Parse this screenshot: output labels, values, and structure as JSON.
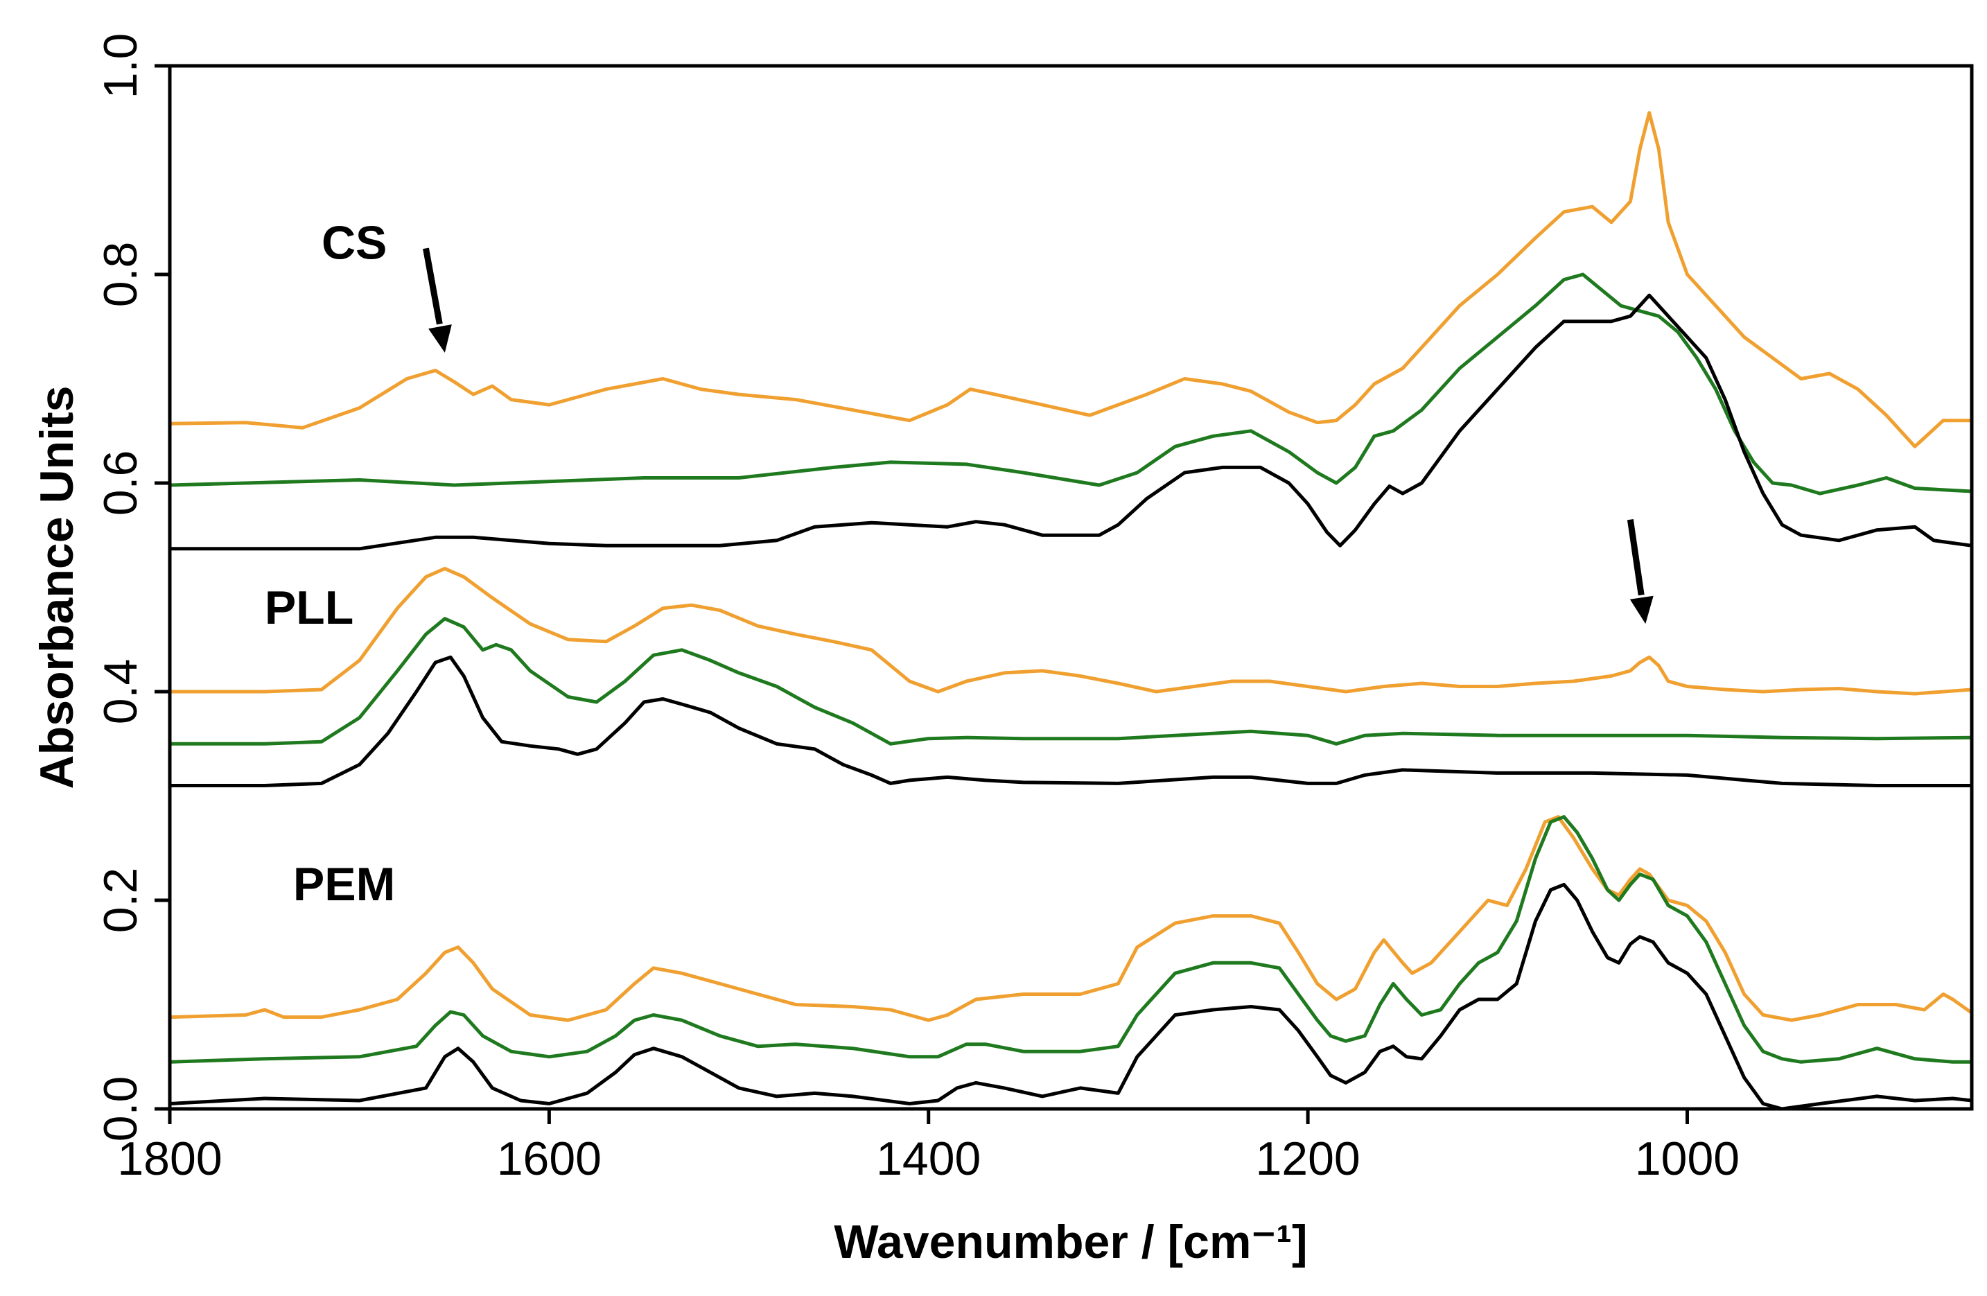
{
  "chart_data": {
    "type": "line",
    "title": "",
    "xlabel": "Wavenumber / [cm⁻¹]",
    "ylabel": "Absorbance Units",
    "xlim": [
      1800,
      850
    ],
    "x_reversed": true,
    "ylim": [
      0.0,
      1.0
    ],
    "xticks": [
      1800,
      1600,
      1400,
      1200,
      1000
    ],
    "xtick_labels": [
      "1800",
      "1600",
      "1400",
      "1200",
      "1000"
    ],
    "yticks": [
      0.0,
      0.2,
      0.4,
      0.6,
      0.8,
      1.0
    ],
    "ytick_labels": [
      "0.0",
      "0.2",
      "0.4",
      "0.6",
      "0.8",
      "1.0"
    ],
    "grid": false,
    "colors": {
      "orange": "#f0a030",
      "green": "#1f7a1f",
      "black": "#000000"
    },
    "group_labels": [
      {
        "text": "CS",
        "x": 1720,
        "y": 0.815
      },
      {
        "text": "PLL",
        "x": 1750,
        "y": 0.465
      },
      {
        "text": "PEM",
        "x": 1735,
        "y": 0.2
      }
    ],
    "arrows": [
      {
        "from": [
          1665,
          0.825
        ],
        "to": [
          1655,
          0.725
        ]
      },
      {
        "from": [
          1030,
          0.565
        ],
        "to": [
          1022,
          0.465
        ]
      }
    ],
    "series": [
      {
        "name": "CS orange",
        "group": "CS",
        "color": "#f0a030",
        "x": [
          1800,
          1760,
          1730,
          1700,
          1675,
          1660,
          1650,
          1640,
          1630,
          1620,
          1600,
          1570,
          1540,
          1520,
          1500,
          1470,
          1440,
          1410,
          1390,
          1378,
          1365,
          1340,
          1315,
          1300,
          1285,
          1265,
          1245,
          1230,
          1210,
          1195,
          1185,
          1175,
          1165,
          1150,
          1135,
          1120,
          1100,
          1080,
          1065,
          1050,
          1040,
          1030,
          1025,
          1020,
          1015,
          1010,
          1000,
          985,
          970,
          955,
          940,
          925,
          910,
          895,
          880,
          865,
          850
        ],
        "y": [
          0.657,
          0.658,
          0.653,
          0.672,
          0.7,
          0.708,
          0.697,
          0.685,
          0.693,
          0.68,
          0.675,
          0.69,
          0.7,
          0.69,
          0.685,
          0.68,
          0.67,
          0.66,
          0.675,
          0.69,
          0.685,
          0.675,
          0.665,
          0.675,
          0.685,
          0.7,
          0.695,
          0.688,
          0.668,
          0.658,
          0.66,
          0.675,
          0.695,
          0.71,
          0.74,
          0.77,
          0.8,
          0.835,
          0.86,
          0.865,
          0.85,
          0.87,
          0.92,
          0.955,
          0.92,
          0.85,
          0.8,
          0.77,
          0.74,
          0.72,
          0.7,
          0.705,
          0.69,
          0.665,
          0.635,
          0.66,
          0.66
        ]
      },
      {
        "name": "CS green",
        "group": "CS",
        "color": "#1f7a1f",
        "x": [
          1800,
          1700,
          1650,
          1550,
          1500,
          1450,
          1420,
          1380,
          1350,
          1310,
          1290,
          1270,
          1250,
          1230,
          1210,
          1195,
          1185,
          1175,
          1165,
          1155,
          1140,
          1120,
          1100,
          1080,
          1065,
          1055,
          1045,
          1035,
          1025,
          1015,
          1005,
          995,
          985,
          975,
          965,
          955,
          945,
          930,
          910,
          895,
          880,
          850
        ],
        "y": [
          0.598,
          0.603,
          0.598,
          0.605,
          0.605,
          0.615,
          0.62,
          0.618,
          0.61,
          0.598,
          0.61,
          0.635,
          0.645,
          0.65,
          0.63,
          0.61,
          0.6,
          0.615,
          0.645,
          0.65,
          0.67,
          0.71,
          0.74,
          0.77,
          0.795,
          0.8,
          0.785,
          0.77,
          0.765,
          0.76,
          0.745,
          0.72,
          0.69,
          0.65,
          0.62,
          0.6,
          0.598,
          0.59,
          0.598,
          0.605,
          0.595,
          0.592
        ]
      },
      {
        "name": "CS black",
        "group": "CS",
        "color": "#000000",
        "x": [
          1800,
          1700,
          1660,
          1640,
          1600,
          1570,
          1540,
          1510,
          1480,
          1460,
          1430,
          1410,
          1390,
          1375,
          1360,
          1340,
          1310,
          1300,
          1285,
          1265,
          1245,
          1225,
          1210,
          1200,
          1190,
          1183,
          1175,
          1165,
          1157,
          1150,
          1140,
          1120,
          1100,
          1080,
          1065,
          1050,
          1040,
          1030,
          1020,
          1010,
          1000,
          990,
          980,
          970,
          960,
          950,
          940,
          920,
          900,
          880,
          870,
          850
        ],
        "y": [
          0.537,
          0.537,
          0.548,
          0.548,
          0.542,
          0.54,
          0.54,
          0.54,
          0.545,
          0.558,
          0.562,
          0.56,
          0.558,
          0.563,
          0.56,
          0.55,
          0.55,
          0.56,
          0.585,
          0.61,
          0.615,
          0.615,
          0.6,
          0.58,
          0.553,
          0.54,
          0.555,
          0.58,
          0.597,
          0.59,
          0.6,
          0.65,
          0.69,
          0.73,
          0.755,
          0.755,
          0.755,
          0.76,
          0.78,
          0.76,
          0.74,
          0.72,
          0.68,
          0.63,
          0.59,
          0.56,
          0.55,
          0.545,
          0.555,
          0.558,
          0.545,
          0.54
        ]
      },
      {
        "name": "PLL orange",
        "group": "PLL",
        "color": "#f0a030",
        "x": [
          1800,
          1750,
          1720,
          1700,
          1680,
          1665,
          1655,
          1645,
          1630,
          1610,
          1590,
          1570,
          1555,
          1540,
          1525,
          1510,
          1490,
          1470,
          1450,
          1430,
          1410,
          1395,
          1380,
          1360,
          1340,
          1320,
          1300,
          1280,
          1260,
          1240,
          1220,
          1200,
          1180,
          1160,
          1140,
          1120,
          1100,
          1080,
          1060,
          1040,
          1030,
          1025,
          1020,
          1015,
          1010,
          1000,
          980,
          960,
          940,
          920,
          900,
          880,
          850
        ],
        "y": [
          0.4,
          0.4,
          0.402,
          0.43,
          0.48,
          0.51,
          0.518,
          0.51,
          0.49,
          0.465,
          0.45,
          0.448,
          0.463,
          0.48,
          0.483,
          0.478,
          0.463,
          0.455,
          0.448,
          0.44,
          0.41,
          0.4,
          0.41,
          0.418,
          0.42,
          0.415,
          0.408,
          0.4,
          0.405,
          0.41,
          0.41,
          0.405,
          0.4,
          0.405,
          0.408,
          0.405,
          0.405,
          0.408,
          0.41,
          0.415,
          0.42,
          0.428,
          0.433,
          0.425,
          0.41,
          0.405,
          0.402,
          0.4,
          0.402,
          0.403,
          0.4,
          0.398,
          0.402
        ]
      },
      {
        "name": "PLL green",
        "group": "PLL",
        "color": "#1f7a1f",
        "x": [
          1800,
          1750,
          1720,
          1700,
          1680,
          1665,
          1655,
          1645,
          1635,
          1628,
          1620,
          1610,
          1590,
          1575,
          1560,
          1545,
          1530,
          1515,
          1500,
          1480,
          1460,
          1440,
          1430,
          1420,
          1400,
          1380,
          1350,
          1300,
          1250,
          1230,
          1200,
          1185,
          1170,
          1150,
          1100,
          1050,
          1000,
          950,
          900,
          850
        ],
        "y": [
          0.35,
          0.35,
          0.352,
          0.375,
          0.42,
          0.455,
          0.47,
          0.462,
          0.44,
          0.445,
          0.44,
          0.42,
          0.395,
          0.39,
          0.41,
          0.435,
          0.44,
          0.43,
          0.418,
          0.405,
          0.385,
          0.37,
          0.36,
          0.35,
          0.355,
          0.356,
          0.355,
          0.355,
          0.36,
          0.362,
          0.358,
          0.35,
          0.358,
          0.36,
          0.358,
          0.358,
          0.358,
          0.356,
          0.355,
          0.356
        ]
      },
      {
        "name": "PLL black",
        "group": "PLL",
        "color": "#000000",
        "x": [
          1800,
          1750,
          1720,
          1700,
          1685,
          1670,
          1660,
          1652,
          1645,
          1635,
          1625,
          1610,
          1595,
          1585,
          1575,
          1560,
          1550,
          1540,
          1530,
          1515,
          1500,
          1480,
          1460,
          1445,
          1430,
          1420,
          1410,
          1390,
          1370,
          1350,
          1300,
          1250,
          1230,
          1200,
          1185,
          1170,
          1150,
          1100,
          1050,
          1000,
          950,
          900,
          850
        ],
        "y": [
          0.31,
          0.31,
          0.312,
          0.33,
          0.36,
          0.4,
          0.428,
          0.433,
          0.415,
          0.375,
          0.352,
          0.348,
          0.345,
          0.34,
          0.345,
          0.37,
          0.39,
          0.393,
          0.388,
          0.38,
          0.365,
          0.35,
          0.345,
          0.33,
          0.32,
          0.312,
          0.315,
          0.318,
          0.315,
          0.313,
          0.312,
          0.318,
          0.318,
          0.312,
          0.312,
          0.32,
          0.325,
          0.322,
          0.322,
          0.32,
          0.312,
          0.31,
          0.31
        ]
      },
      {
        "name": "PEM orange",
        "group": "PEM",
        "color": "#f0a030",
        "x": [
          1800,
          1760,
          1750,
          1740,
          1720,
          1700,
          1680,
          1665,
          1655,
          1648,
          1640,
          1630,
          1610,
          1590,
          1570,
          1555,
          1545,
          1530,
          1510,
          1490,
          1470,
          1440,
          1420,
          1400,
          1390,
          1375,
          1350,
          1320,
          1300,
          1290,
          1270,
          1250,
          1230,
          1215,
          1205,
          1195,
          1185,
          1175,
          1165,
          1160,
          1150,
          1145,
          1135,
          1120,
          1105,
          1095,
          1085,
          1075,
          1068,
          1060,
          1050,
          1042,
          1036,
          1030,
          1025,
          1020,
          1010,
          1000,
          990,
          980,
          970,
          960,
          945,
          930,
          910,
          890,
          875,
          865,
          860,
          850
        ],
        "y": [
          0.088,
          0.09,
          0.095,
          0.088,
          0.088,
          0.095,
          0.105,
          0.13,
          0.15,
          0.155,
          0.14,
          0.115,
          0.09,
          0.085,
          0.095,
          0.12,
          0.135,
          0.13,
          0.12,
          0.11,
          0.1,
          0.098,
          0.095,
          0.085,
          0.09,
          0.105,
          0.11,
          0.11,
          0.12,
          0.155,
          0.178,
          0.185,
          0.185,
          0.178,
          0.15,
          0.12,
          0.105,
          0.115,
          0.15,
          0.162,
          0.14,
          0.13,
          0.14,
          0.17,
          0.2,
          0.195,
          0.23,
          0.275,
          0.28,
          0.26,
          0.23,
          0.21,
          0.205,
          0.22,
          0.23,
          0.225,
          0.2,
          0.195,
          0.18,
          0.15,
          0.11,
          0.09,
          0.085,
          0.09,
          0.1,
          0.1,
          0.095,
          0.11,
          0.105,
          0.092
        ]
      },
      {
        "name": "PEM green",
        "group": "PEM",
        "color": "#1f7a1f",
        "x": [
          1800,
          1750,
          1700,
          1670,
          1660,
          1652,
          1645,
          1635,
          1620,
          1600,
          1580,
          1565,
          1555,
          1545,
          1530,
          1510,
          1490,
          1470,
          1440,
          1410,
          1395,
          1380,
          1370,
          1350,
          1320,
          1300,
          1290,
          1270,
          1250,
          1230,
          1215,
          1205,
          1195,
          1188,
          1180,
          1170,
          1162,
          1155,
          1148,
          1140,
          1130,
          1120,
          1110,
          1100,
          1090,
          1080,
          1072,
          1065,
          1058,
          1050,
          1042,
          1036,
          1030,
          1025,
          1018,
          1010,
          1000,
          990,
          980,
          970,
          960,
          950,
          940,
          920,
          900,
          880,
          860,
          850
        ],
        "y": [
          0.045,
          0.048,
          0.05,
          0.06,
          0.08,
          0.093,
          0.09,
          0.07,
          0.055,
          0.05,
          0.055,
          0.07,
          0.085,
          0.09,
          0.085,
          0.07,
          0.06,
          0.062,
          0.058,
          0.05,
          0.05,
          0.062,
          0.062,
          0.055,
          0.055,
          0.06,
          0.09,
          0.13,
          0.14,
          0.14,
          0.135,
          0.11,
          0.085,
          0.07,
          0.065,
          0.07,
          0.1,
          0.12,
          0.105,
          0.09,
          0.095,
          0.12,
          0.14,
          0.15,
          0.18,
          0.24,
          0.275,
          0.28,
          0.265,
          0.24,
          0.21,
          0.2,
          0.215,
          0.225,
          0.22,
          0.195,
          0.185,
          0.16,
          0.12,
          0.08,
          0.055,
          0.048,
          0.045,
          0.048,
          0.058,
          0.048,
          0.045,
          0.045
        ]
      },
      {
        "name": "PEM black",
        "group": "PEM",
        "color": "#000000",
        "x": [
          1800,
          1750,
          1700,
          1665,
          1655,
          1648,
          1640,
          1630,
          1615,
          1600,
          1580,
          1565,
          1555,
          1545,
          1530,
          1515,
          1500,
          1480,
          1460,
          1440,
          1410,
          1395,
          1385,
          1375,
          1360,
          1340,
          1320,
          1300,
          1290,
          1270,
          1250,
          1230,
          1215,
          1205,
          1195,
          1188,
          1180,
          1170,
          1162,
          1155,
          1148,
          1140,
          1130,
          1120,
          1110,
          1100,
          1090,
          1080,
          1072,
          1065,
          1058,
          1050,
          1042,
          1036,
          1030,
          1025,
          1018,
          1010,
          1000,
          990,
          980,
          970,
          960,
          950,
          930,
          900,
          880,
          860,
          850
        ],
        "y": [
          0.005,
          0.01,
          0.008,
          0.02,
          0.05,
          0.058,
          0.045,
          0.02,
          0.008,
          0.005,
          0.015,
          0.035,
          0.052,
          0.058,
          0.05,
          0.035,
          0.02,
          0.012,
          0.015,
          0.012,
          0.005,
          0.008,
          0.02,
          0.025,
          0.02,
          0.012,
          0.02,
          0.015,
          0.05,
          0.09,
          0.095,
          0.098,
          0.095,
          0.075,
          0.05,
          0.032,
          0.025,
          0.035,
          0.055,
          0.06,
          0.05,
          0.048,
          0.07,
          0.095,
          0.105,
          0.105,
          0.12,
          0.18,
          0.21,
          0.215,
          0.2,
          0.17,
          0.145,
          0.14,
          0.158,
          0.165,
          0.16,
          0.14,
          0.13,
          0.11,
          0.07,
          0.03,
          0.005,
          0.0,
          0.005,
          0.012,
          0.008,
          0.01,
          0.008
        ]
      }
    ]
  }
}
